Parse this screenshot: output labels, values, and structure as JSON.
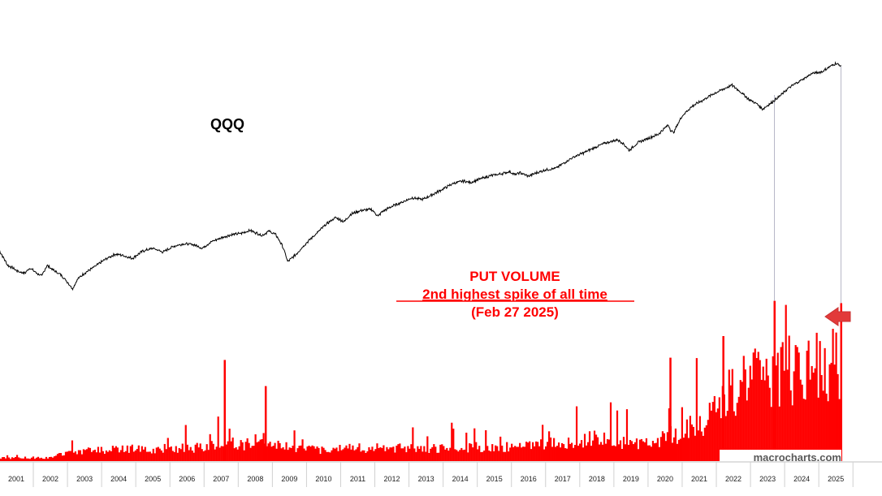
{
  "chart_data": [
    {
      "type": "line",
      "title": "QQQ",
      "series": [
        {
          "name": "QQQ",
          "x": [
            2000.5,
            2000.6,
            2000.75,
            2000.9,
            2001.0,
            2001.1,
            2001.25,
            2001.4,
            2001.6,
            2001.75,
            2001.9,
            2002.1,
            2002.3,
            2002.5,
            2002.65,
            2002.8,
            2003.0,
            2003.3,
            2003.6,
            2003.9,
            2004.1,
            2004.4,
            2004.7,
            2005.0,
            2005.3,
            2005.6,
            2005.9,
            2006.2,
            2006.45,
            2006.7,
            2007.0,
            2007.3,
            2007.6,
            2007.85,
            2008.0,
            2008.2,
            2008.4,
            2008.6,
            2008.8,
            2008.95,
            2009.2,
            2009.5,
            2009.8,
            2010.1,
            2010.35,
            2010.6,
            2010.8,
            2011.1,
            2011.4,
            2011.6,
            2011.7,
            2012.0,
            2012.3,
            2012.6,
            2012.9,
            2013.2,
            2013.5,
            2013.8,
            2014.1,
            2014.3,
            2014.6,
            2014.9,
            2015.2,
            2015.45,
            2015.6,
            2015.75,
            2016.0,
            2016.2,
            2016.5,
            2016.8,
            2017.0,
            2017.3,
            2017.6,
            2017.9,
            2018.2,
            2018.6,
            2018.75,
            2018.95,
            2019.2,
            2019.5,
            2019.8,
            2020.1,
            2020.15,
            2020.25,
            2020.5,
            2020.8,
            2021.1,
            2021.4,
            2021.7,
            2021.95,
            2022.2,
            2022.45,
            2022.7,
            2022.85,
            2023.1,
            2023.4,
            2023.6,
            2023.8,
            2024.1,
            2024.3,
            2024.6,
            2024.8,
            2025.0,
            2025.15
          ],
          "y": [
            0.66,
            0.6,
            0.52,
            0.5,
            0.48,
            0.47,
            0.46,
            0.5,
            0.46,
            0.44,
            0.52,
            0.48,
            0.45,
            0.4,
            0.36,
            0.42,
            0.46,
            0.51,
            0.57,
            0.62,
            0.61,
            0.58,
            0.65,
            0.68,
            0.64,
            0.7,
            0.73,
            0.72,
            0.68,
            0.75,
            0.8,
            0.84,
            0.86,
            0.9,
            0.87,
            0.83,
            0.89,
            0.84,
            0.7,
            0.55,
            0.62,
            0.74,
            0.86,
            1.0,
            1.1,
            1.03,
            1.16,
            1.23,
            1.25,
            1.12,
            1.2,
            1.31,
            1.4,
            1.5,
            1.46,
            1.58,
            1.72,
            1.88,
            1.95,
            1.9,
            2.02,
            2.12,
            2.18,
            2.26,
            2.15,
            2.22,
            2.1,
            2.2,
            2.32,
            2.38,
            2.55,
            2.82,
            3.02,
            3.26,
            3.5,
            3.72,
            3.55,
            3.14,
            3.55,
            3.8,
            4.05,
            4.7,
            4.35,
            4.15,
            5.4,
            6.3,
            6.9,
            7.6,
            8.2,
            8.75,
            7.9,
            7.0,
            6.5,
            6.0,
            6.6,
            7.5,
            8.3,
            8.9,
            9.8,
            10.5,
            10.8,
            11.6,
            12.3,
            11.8
          ]
        }
      ],
      "yscale": "log",
      "xlim": [
        2000.5,
        2025.2
      ],
      "ylim": [
        0.32,
        16
      ],
      "grid": false
    },
    {
      "type": "bar",
      "title": "PUT VOLUME",
      "annotation": {
        "line1": "PUT VOLUME",
        "line2": "2nd highest spike of all time",
        "line3": "(Feb 27 2025)"
      },
      "x_ticks": [
        "2001",
        "2002",
        "2003",
        "2004",
        "2005",
        "2006",
        "2007",
        "2008",
        "2009",
        "2010",
        "2011",
        "2012",
        "2013",
        "2014",
        "2015",
        "2016",
        "2017",
        "2018",
        "2019",
        "2020",
        "2021",
        "2022",
        "2023",
        "2024",
        "2025"
      ],
      "x_tick_values": [
        2001,
        2002,
        2003,
        2004,
        2005,
        2006,
        2007,
        2008,
        2009,
        2010,
        2011,
        2012,
        2013,
        2014,
        2015,
        2016,
        2017,
        2018,
        2019,
        2020,
        2021,
        2022,
        2023,
        2024,
        2025
      ],
      "baseline_envelope": {
        "x": [
          2000.5,
          2002.0,
          2002.6,
          2003.5,
          2005.0,
          2006.5,
          2007.0,
          2008.5,
          2009.5,
          2011.0,
          2013.0,
          2014.5,
          2016.0,
          2017.0,
          2018.0,
          2019.0,
          2020.0,
          2020.5,
          2021.0,
          2021.5,
          2022.0,
          2022.5,
          2023.0,
          2023.5,
          2024.0,
          2024.5,
          2025.15
        ],
        "y": [
          0.6,
          0.7,
          1.8,
          2.2,
          2.4,
          2.6,
          3.5,
          3.0,
          2.2,
          2.6,
          2.4,
          2.8,
          3.0,
          3.6,
          4.4,
          3.4,
          4.6,
          5.6,
          7.4,
          10.0,
          14.0,
          15.5,
          17.0,
          17.5,
          18.2,
          18.8,
          19.0
        ]
      },
      "spikes": [
        {
          "x": 2007.1,
          "y": 17.8
        },
        {
          "x": 2008.3,
          "y": 13.2
        },
        {
          "x": 2020.15,
          "y": 18.2
        },
        {
          "x": 2021.7,
          "y": 22.0
        },
        {
          "x": 2023.2,
          "y": 28.2
        },
        {
          "x": 2025.15,
          "y": 27.8
        }
      ],
      "ylim": [
        0,
        30
      ]
    }
  ],
  "colors": {
    "line": "#000000",
    "bars": "#ff0000",
    "annotation": "#ff0000",
    "arrow": "#e23a3a",
    "guide": "#b8b8c8",
    "brand": "#595959"
  },
  "labels": {
    "qqq": "QQQ",
    "brand": "macrocharts.com"
  },
  "icons": {
    "arrow": "left-pointing-arrow-icon"
  }
}
